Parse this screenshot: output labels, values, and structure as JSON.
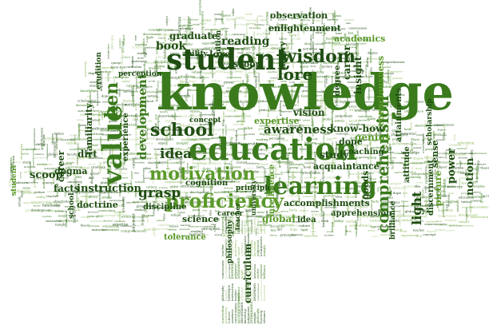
{
  "palette": {
    "dark": "#1f4d12",
    "mid": "#3a7a1c",
    "bright": "#5b9a2a",
    "light": "#8bb85a",
    "pale": "#b7d39a"
  },
  "words": [
    {
      "key": "knowledge",
      "text": "knowledge",
      "tone": "mid"
    },
    {
      "key": "education",
      "text": "education",
      "tone": "mid"
    },
    {
      "key": "student",
      "text": "student",
      "tone": "dark"
    },
    {
      "key": "learning",
      "text": "learning",
      "tone": "mid"
    },
    {
      "key": "value",
      "text": "value",
      "tone": "mid"
    },
    {
      "key": "motivation",
      "text": "motivation",
      "tone": "bright"
    },
    {
      "key": "proficiency",
      "text": "proficiency",
      "tone": "bright"
    },
    {
      "key": "wisdom",
      "text": "wisdom",
      "tone": "dark"
    },
    {
      "key": "school",
      "text": "school",
      "tone": "dark"
    },
    {
      "key": "comprehension",
      "text": "comprehension",
      "tone": "mid"
    },
    {
      "key": "lore",
      "text": "lore",
      "tone": "dark"
    },
    {
      "key": "ken",
      "text": "ken",
      "tone": "mid"
    },
    {
      "key": "development",
      "text": "development",
      "tone": "mid"
    },
    {
      "key": "idea",
      "text": "idea",
      "tone": "dark"
    },
    {
      "key": "awareness",
      "text": "awareness",
      "tone": "dark"
    },
    {
      "key": "grasp",
      "text": "grasp",
      "tone": "dark"
    },
    {
      "key": "light",
      "text": "light",
      "tone": "dark"
    },
    {
      "key": "book",
      "text": "book",
      "tone": "dark"
    },
    {
      "key": "reading",
      "text": "reading",
      "tone": "dark"
    },
    {
      "key": "graduate",
      "text": "graduate",
      "tone": "dark"
    },
    {
      "key": "career_top",
      "text": "career",
      "tone": "dark"
    },
    {
      "key": "scoop",
      "text": "scoop",
      "tone": "dark"
    },
    {
      "key": "scoop_top",
      "text": "scoop",
      "tone": "dark"
    },
    {
      "key": "lore_top",
      "text": "lore",
      "tone": "dark"
    },
    {
      "key": "genius",
      "text": "genius",
      "tone": "bright"
    },
    {
      "key": "study",
      "text": "study",
      "tone": "dark"
    },
    {
      "key": "vision",
      "text": "vision",
      "tone": "dark"
    },
    {
      "key": "insight",
      "text": "insight",
      "tone": "dark"
    },
    {
      "key": "observation",
      "text": "observation",
      "tone": "dark"
    },
    {
      "key": "enlightenment",
      "text": "enlightenment",
      "tone": "dark"
    },
    {
      "key": "academics",
      "text": "academics",
      "tone": "bright"
    },
    {
      "key": "consciousness",
      "text": "consciousness",
      "tone": "bright"
    },
    {
      "key": "know_how",
      "text": "know-how",
      "tone": "dark"
    },
    {
      "key": "attainments",
      "text": "attainments",
      "tone": "dark"
    },
    {
      "key": "expertise",
      "text": "expertise",
      "tone": "bright"
    },
    {
      "key": "experience",
      "text": "experience",
      "tone": "dark"
    },
    {
      "key": "instruction",
      "text": "instruction",
      "tone": "dark"
    },
    {
      "key": "familiarity",
      "text": "familiarity",
      "tone": "dark"
    },
    {
      "key": "dogma",
      "text": "dogma",
      "tone": "dark"
    },
    {
      "key": "dirt",
      "text": "dirt",
      "tone": "dark"
    },
    {
      "key": "facts",
      "text": "facts",
      "tone": "dark"
    },
    {
      "key": "doctrine",
      "text": "doctrine",
      "tone": "dark"
    },
    {
      "key": "science",
      "text": "science",
      "tone": "dark"
    },
    {
      "key": "discipline",
      "text": "discipline",
      "tone": "dark"
    },
    {
      "key": "global",
      "text": "global",
      "tone": "bright"
    },
    {
      "key": "accomplishments",
      "text": "accomplishments",
      "tone": "dark"
    },
    {
      "key": "acquaintance",
      "text": "acquaintance",
      "tone": "dark"
    },
    {
      "key": "coaching",
      "text": "coaching",
      "tone": "dark"
    },
    {
      "key": "goods",
      "text": "goods",
      "tone": "dark"
    },
    {
      "key": "attitude",
      "text": "attitude",
      "tone": "dark"
    },
    {
      "key": "discernment",
      "text": "discernment",
      "tone": "dark"
    },
    {
      "key": "picture",
      "text": "picture",
      "tone": "bright"
    },
    {
      "key": "power",
      "text": "power",
      "tone": "dark"
    },
    {
      "key": "notion",
      "text": "notion",
      "tone": "dark"
    },
    {
      "key": "sense",
      "text": "sense",
      "tone": "dark"
    },
    {
      "key": "tolerance",
      "text": "tolerance",
      "tone": "bright"
    },
    {
      "key": "curriculum",
      "text": "curriculum",
      "tone": "dark"
    },
    {
      "key": "tuition",
      "text": "tuition",
      "tone": "dark"
    },
    {
      "key": "theory",
      "text": "theory",
      "tone": "dark"
    },
    {
      "key": "degree",
      "text": "degree",
      "tone": "dark"
    },
    {
      "key": "dope",
      "text": "dope",
      "tone": "dark"
    },
    {
      "key": "concept",
      "text": "concept",
      "tone": "dark"
    },
    {
      "key": "cognition",
      "text": "cognition",
      "tone": "dark"
    },
    {
      "key": "principles",
      "text": "principles",
      "tone": "dark"
    },
    {
      "key": "idea_low",
      "text": "idea",
      "tone": "dark"
    },
    {
      "key": "career_low",
      "text": "career",
      "tone": "dark"
    },
    {
      "key": "career_left",
      "text": "career",
      "tone": "dark"
    },
    {
      "key": "scholarship",
      "text": "scholarship",
      "tone": "dark"
    },
    {
      "key": "intelligence",
      "text": "intelligence",
      "tone": "bright"
    },
    {
      "key": "university",
      "text": "university",
      "tone": "dark"
    },
    {
      "key": "teacher",
      "text": "teacher",
      "tone": "dark"
    },
    {
      "key": "philosophy",
      "text": "philosophy",
      "tone": "dark"
    },
    {
      "key": "brilliance",
      "text": "brilliance",
      "tone": "dark"
    },
    {
      "key": "apprehension",
      "text": "apprehension",
      "tone": "dark"
    },
    {
      "key": "school_low",
      "text": "school",
      "tone": "dark"
    },
    {
      "key": "erudition",
      "text": "erudition",
      "tone": "dark"
    },
    {
      "key": "perception",
      "text": "perception",
      "tone": "dark"
    },
    {
      "key": "ability",
      "text": "ability",
      "tone": "dark"
    },
    {
      "key": "student_left",
      "text": "student",
      "tone": "bright"
    }
  ],
  "tiny_words": [
    "perception",
    "scoop",
    "career",
    "value",
    "goods",
    "lore",
    "ken",
    "dirt",
    "dope",
    "light",
    "sense",
    "power",
    "notion",
    "facts",
    "picture",
    "genius",
    "grasp",
    "book",
    "ability",
    "teacher",
    "degree",
    "tuition",
    "science",
    "global",
    "attitude",
    "faculty",
    "familiarity",
    "study",
    "wisdom",
    "subject",
    "cognition",
    "insight",
    "vision",
    "theory",
    "principles",
    "scholarship",
    "expertise",
    "erudition",
    "doctrine",
    "dogma",
    "coaching",
    "school",
    "learning",
    "academics",
    "experience",
    "idea",
    "concept",
    "intelligence",
    "university",
    "tolerance",
    "discipline",
    "philosophy",
    "potential",
    "culture",
    "brilliance",
    "knowledge",
    "education",
    "acquaintance",
    "accomplishments",
    "apprehension",
    "attainments",
    "enlightenment",
    "observation",
    "awareness",
    "consciousness",
    "discernment",
    "proficiency",
    "development",
    "instruction",
    "motivation",
    "comprehension",
    "judgement",
    "know-how",
    "curriculum",
    "student",
    "graduate",
    "reading"
  ],
  "trunk_words": [
    "curriculum",
    "philosophy",
    "consciousness",
    "teacher",
    "judgement",
    "proficiency",
    "learning",
    "accomplishments",
    "experience",
    "attainments",
    "culture",
    "tolerance",
    "discernment",
    "brilliance",
    "insight",
    "awareness",
    "instruction",
    "knowledge"
  ]
}
